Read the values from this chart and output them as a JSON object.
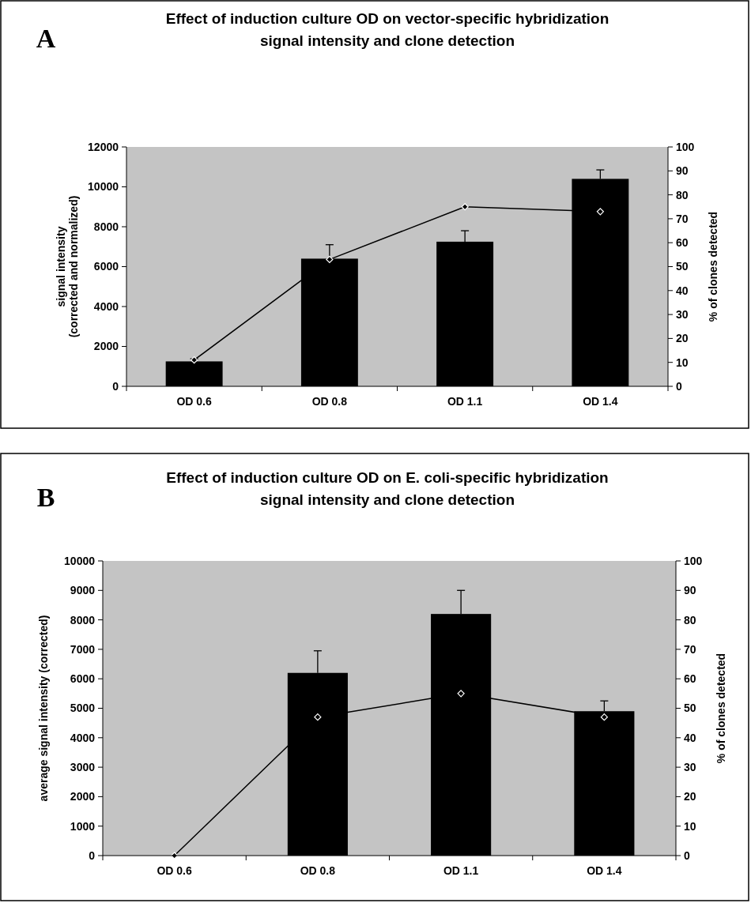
{
  "chart_data": [
    {
      "type": "bar",
      "title": "Effect of induction culture OD on vector-specific hybridization signal intensity and clone detection",
      "annotations": [
        "A"
      ],
      "categories": [
        "OD 0.6",
        "OD 0.8",
        "OD 1.1",
        "OD 1.4"
      ],
      "ylabel": "signal intensity (corrected and normalized)",
      "y2label": "% of clones detected",
      "ylim": [
        0,
        12000
      ],
      "yticks": [
        0,
        2000,
        4000,
        6000,
        8000,
        10000,
        12000
      ],
      "y2lim": [
        0,
        100
      ],
      "y2ticks": [
        0,
        10,
        20,
        30,
        40,
        50,
        60,
        70,
        80,
        90,
        100
      ],
      "marker": "diamond",
      "series": [
        {
          "color": "#000000",
          "values": [
            1250,
            6400,
            7250,
            10400
          ],
          "errors": [
            [
              1250,
              1380
            ],
            [
              6400,
              7100
            ],
            [
              7250,
              7800
            ],
            [
              10400,
              10850
            ]
          ]
        },
        {
          "type": "line",
          "axis": "y2",
          "color": "#000000",
          "values": [
            11,
            53,
            75,
            73
          ]
        }
      ]
    },
    {
      "type": "bar",
      "title": "Effect of induction culture OD on E. coli-specific hybridization signal intensity and clone detection",
      "annotations": [
        "B"
      ],
      "categories": [
        "OD 0.6",
        "OD 0.8",
        "OD 1.1",
        "OD 1.4"
      ],
      "ylabel": "average signal intensity (corrected)",
      "y2label": "% of clones detected",
      "ylim": [
        0,
        10000
      ],
      "yticks": [
        0,
        1000,
        2000,
        3000,
        4000,
        5000,
        6000,
        7000,
        8000,
        9000,
        10000
      ],
      "y2lim": [
        0,
        100
      ],
      "y2ticks": [
        0,
        10,
        20,
        30,
        40,
        50,
        60,
        70,
        80,
        90,
        100
      ],
      "marker": "diamond",
      "series": [
        {
          "color": "#000000",
          "values": [
            null,
            6200,
            8200,
            4900
          ],
          "errors": [
            null,
            [
              6200,
              6950
            ],
            [
              8200,
              9000
            ],
            [
              4900,
              5250
            ]
          ]
        },
        {
          "type": "line",
          "axis": "y2",
          "color": "#000000",
          "values": [
            0,
            47,
            55,
            47
          ]
        }
      ]
    }
  ]
}
